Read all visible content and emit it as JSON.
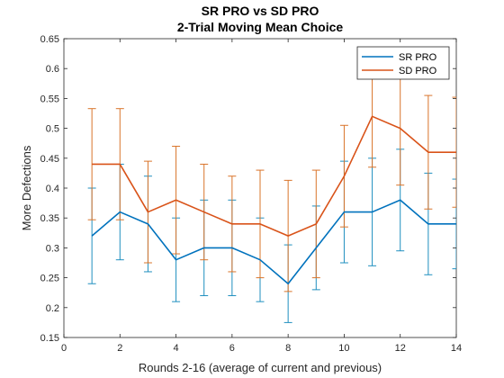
{
  "chart_data": {
    "type": "line",
    "title": "SR PRO vs SD PRO",
    "subtitle": "2-Trial Moving Mean Choice",
    "xlabel": "Rounds 2-16 (average of current and previous)",
    "ylabel": "More Defections",
    "xlim": [
      0,
      14
    ],
    "ylim": [
      0.15,
      0.65
    ],
    "xticks": [
      0,
      2,
      4,
      6,
      8,
      10,
      12,
      14
    ],
    "yticks": [
      0.15,
      0.2,
      0.25,
      0.3,
      0.35,
      0.4,
      0.45,
      0.5,
      0.55,
      0.6,
      0.65
    ],
    "xtick_labels": [
      "0",
      "2",
      "4",
      "6",
      "8",
      "10",
      "12",
      "14"
    ],
    "ytick_labels": [
      "0.15",
      "0.2",
      "0.25",
      "0.3",
      "0.35",
      "0.4",
      "0.45",
      "0.5",
      "0.55",
      "0.6",
      "0.65"
    ],
    "grid": false,
    "legend_position": "top-right",
    "x": [
      1,
      2,
      3,
      4,
      5,
      6,
      7,
      8,
      9,
      10,
      11,
      12,
      13,
      14
    ],
    "series": [
      {
        "name": "SR PRO",
        "color": "#0072BD",
        "errorbar_color": "#1f8fbf",
        "values": [
          0.32,
          0.36,
          0.34,
          0.28,
          0.3,
          0.3,
          0.28,
          0.24,
          0.3,
          0.36,
          0.36,
          0.38,
          0.34,
          0.34
        ],
        "error": [
          0.08,
          0.08,
          0.08,
          0.07,
          0.08,
          0.08,
          0.07,
          0.065,
          0.07,
          0.085,
          0.09,
          0.085,
          0.085,
          0.075
        ]
      },
      {
        "name": "SD PRO",
        "color": "#D95319",
        "errorbar_color": "#d9742a",
        "values": [
          0.44,
          0.44,
          0.36,
          0.38,
          0.36,
          0.34,
          0.34,
          0.32,
          0.34,
          0.42,
          0.52,
          0.5,
          0.46,
          0.46
        ],
        "error": [
          0.093,
          0.093,
          0.085,
          0.09,
          0.08,
          0.08,
          0.09,
          0.093,
          0.09,
          0.085,
          0.085,
          0.095,
          0.095,
          0.092
        ]
      }
    ]
  }
}
